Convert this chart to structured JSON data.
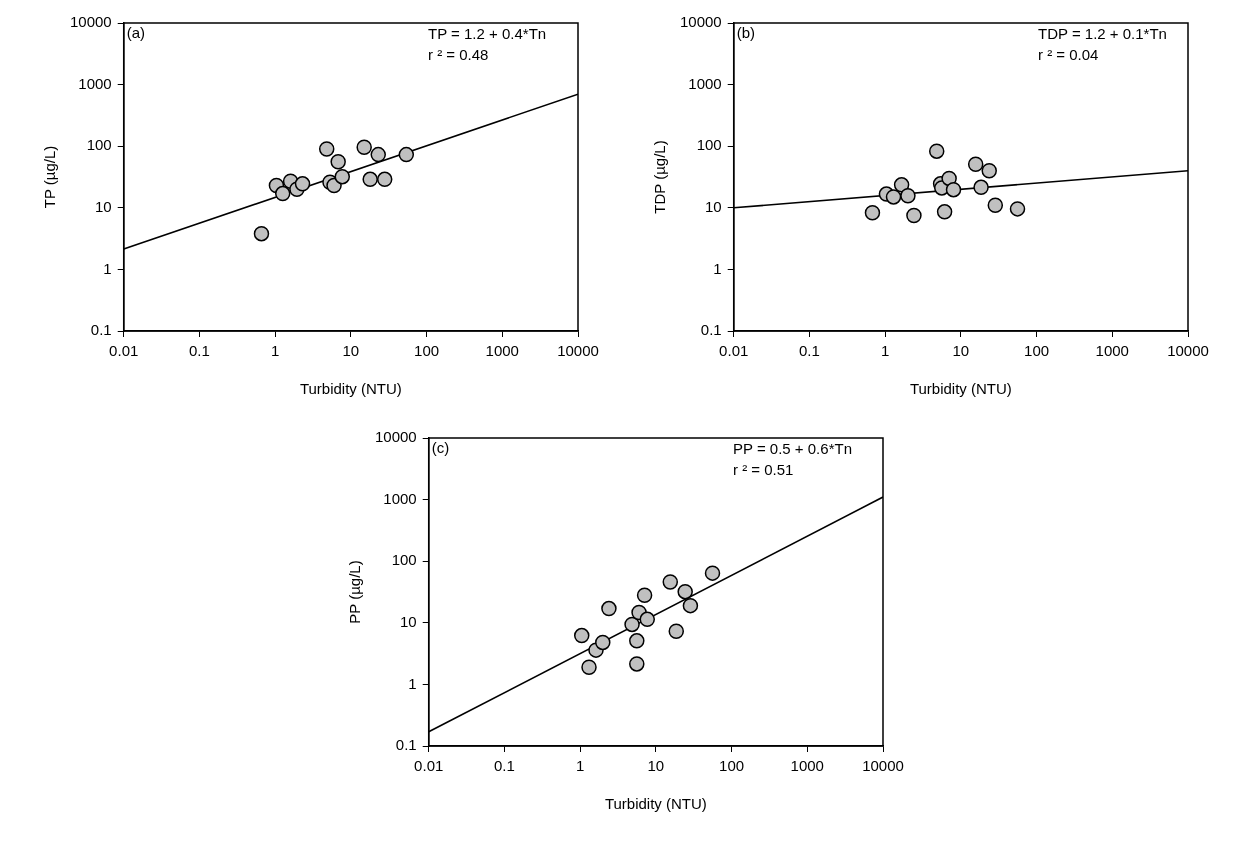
{
  "chart_data": [
    {
      "type": "scatter",
      "xlabel": "Turbidity (NTU)",
      "ylabel": "TP (µg/L)",
      "log": "xy",
      "grid": false,
      "legend": false,
      "xlim": [
        0.01,
        10000
      ],
      "ylim": [
        0.1,
        10000
      ],
      "xticks": [
        0.01,
        0.1,
        1,
        10,
        100,
        1000,
        10000
      ],
      "yticks": [
        0.1,
        1,
        10,
        100,
        1000,
        10000
      ],
      "annotations": [
        "(a)",
        "TP = 1.2 + 0.4*Tn",
        "r ² = 0.48"
      ],
      "series": [
        {
          "color": "#c0c0c0",
          "marker": "circle",
          "x": [
            0.66,
            1.04,
            1.26,
            1.6,
            1.94,
            2.3,
            4.8,
            5.3,
            6.0,
            6.8,
            7.7,
            15,
            18,
            23,
            28,
            54
          ],
          "values": [
            3.8,
            23,
            17,
            27,
            20,
            24.5,
            90,
            26,
            23,
            56,
            32,
            96,
            29,
            73,
            29,
            73
          ]
        },
        {
          "type": "line",
          "color": "#000000",
          "marker": "none",
          "line_style": "solid",
          "x": [
            0.01,
            10000
          ],
          "values": [
            2.15,
            700
          ]
        }
      ]
    },
    {
      "type": "scatter",
      "xlabel": "Turbidity (NTU)",
      "ylabel": "TDP (µg/L)",
      "log": "xy",
      "grid": false,
      "legend": false,
      "xlim": [
        0.01,
        10000
      ],
      "ylim": [
        0.1,
        10000
      ],
      "xticks": [
        0.01,
        0.1,
        1,
        10,
        100,
        1000,
        10000
      ],
      "yticks": [
        0.1,
        1,
        10,
        100,
        1000,
        10000
      ],
      "annotations": [
        "(b)",
        "TDP = 1.2 + 0.1*Tn",
        "r ² = 0.04"
      ],
      "series": [
        {
          "color": "#c0c0c0",
          "marker": "circle",
          "x": [
            0.68,
            1.04,
            1.29,
            1.65,
            2.0,
            2.4,
            4.8,
            5.4,
            5.6,
            6.1,
            7.0,
            8.0,
            15.7,
            18.5,
            23.7,
            28.5,
            56
          ],
          "values": [
            8.3,
            16.7,
            15,
            23.6,
            15.7,
            7.5,
            83,
            24.5,
            21,
            8.6,
            30,
            19.7,
            51,
            21.5,
            40,
            11,
            9.6
          ]
        },
        {
          "type": "line",
          "color": "#000000",
          "marker": "none",
          "line_style": "solid",
          "x": [
            0.01,
            10000
          ],
          "values": [
            10,
            40
          ]
        }
      ]
    },
    {
      "type": "scatter",
      "xlabel": "Turbidity (NTU)",
      "ylabel": "PP (µg/L)",
      "log": "xy",
      "grid": false,
      "legend": false,
      "xlim": [
        0.01,
        10000
      ],
      "ylim": [
        0.1,
        10000
      ],
      "xticks": [
        0.01,
        0.1,
        1,
        10,
        100,
        1000,
        10000
      ],
      "yticks": [
        0.1,
        1,
        10,
        100,
        1000,
        10000
      ],
      "annotations": [
        "(c)",
        "PP = 0.5 + 0.6*Tn",
        "r ² = 0.51"
      ],
      "series": [
        {
          "color": "#c0c0c0",
          "marker": "circle",
          "x": [
            1.05,
            1.31,
            1.62,
            1.99,
            2.4,
            4.85,
            5.6,
            5.6,
            6.0,
            7.1,
            7.7,
            15.5,
            18.6,
            24.4,
            28.6,
            56
          ],
          "values": [
            6.2,
            1.9,
            3.6,
            4.8,
            17,
            9.4,
            5.1,
            2.15,
            14.7,
            28,
            11.4,
            46,
            7.3,
            32,
            19,
            64
          ]
        },
        {
          "type": "line",
          "color": "#000000",
          "marker": "none",
          "line_style": "solid",
          "x": [
            0.01,
            10000
          ],
          "values": [
            0.17,
            1100
          ]
        }
      ]
    }
  ]
}
